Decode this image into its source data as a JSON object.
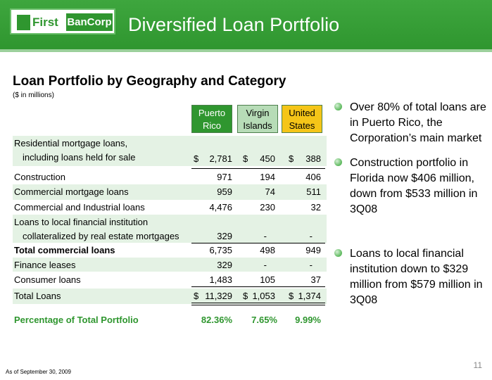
{
  "header": {
    "logo_first": "First",
    "logo_sub": "BanCorp",
    "title": "Diversified Loan Portfolio"
  },
  "section": {
    "title": "Loan Portfolio by Geography and Category",
    "units": "($ in millions)"
  },
  "columns": [
    {
      "line1": "Puerto",
      "line2": "Rico",
      "color": "#2f962f"
    },
    {
      "line1": "Virgin",
      "line2": "Islands",
      "color": "#b7dcb7"
    },
    {
      "line1": "United",
      "line2": "States",
      "color": "#f5c518"
    }
  ],
  "rows": {
    "residential": {
      "label1": "Residential mortgage loans,",
      "label2": "including loans held for sale",
      "pr": "2,781",
      "vi": "450",
      "us": "388"
    },
    "construction": {
      "label": "Construction",
      "pr": "971",
      "vi": "194",
      "us": "406"
    },
    "commercial_mortgage": {
      "label": "Commercial mortgage loans",
      "pr": "959",
      "vi": "74",
      "us": "511"
    },
    "ci": {
      "label": "Commercial and Industrial loans",
      "pr": "4,476",
      "vi": "230",
      "us": "32"
    },
    "local": {
      "label1": "Loans to local financial institution",
      "label2": "collateralized by real estate mortgages",
      "pr": "329",
      "vi": "-",
      "us": "-"
    },
    "total_commercial": {
      "label": "Total commercial loans",
      "pr": "6,735",
      "vi": "498",
      "us": "949"
    },
    "finance": {
      "label": "Finance leases",
      "pr": "329",
      "vi": "-",
      "us": "-"
    },
    "consumer": {
      "label": "Consumer loans",
      "pr": "1,483",
      "vi": "105",
      "us": "37"
    },
    "total": {
      "label": "Total Loans",
      "pr": "11,329",
      "vi": "1,053",
      "us": "1,374"
    },
    "percentage": {
      "label": "Percentage of Total Portfolio",
      "pr": "82.36%",
      "vi": "7.65%",
      "us": "9.99%"
    }
  },
  "currency_symbol": "$",
  "bullets": [
    "Over 80% of total loans are in Puerto Rico, the Corporation’s main market",
    "Construction portfolio in Florida now $406 million, down from $533 million in 3Q08",
    "Loans to local financial institution down to $329 million from $579 million in 3Q08"
  ],
  "footnote": "As of September 30, 2009",
  "page_number": "11"
}
